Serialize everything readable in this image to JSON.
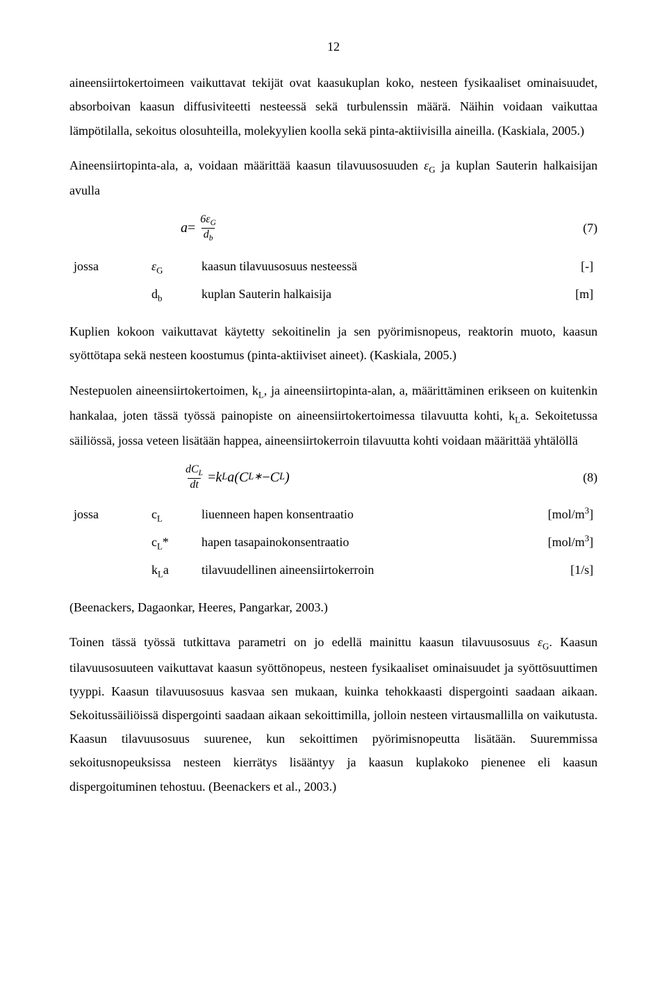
{
  "page_number": "12",
  "p1": "aineensiirtokertoimeen vaikuttavat tekijät ovat kaasukuplan koko, nesteen fysikaaliset ominaisuudet, absorboivan kaasun diffusiviteetti nesteessä sekä turbulenssin määrä. Näihin voidaan vaikuttaa lämpötilalla, sekoitus olosuhteilla, molekyylien koolla sekä pinta-aktiivisilla aineilla. (Kaskiala, 2005.)",
  "p2_pre": "Aineensiirtopinta-ala, a, voidaan määrittää kaasun tilavuusosuuden ",
  "p2_eps": "ε",
  "p2_epssub": "G",
  "p2_post": " ja kuplan Sauterin halkaisijan avulla",
  "eq7": {
    "lhs": "a",
    "eq": " = ",
    "num_a": "6ε",
    "num_sub": "G",
    "den_a": "d",
    "den_sub": "b",
    "number": "(7)"
  },
  "def7": {
    "jossa": "jossa",
    "r1_sym_a": "ε",
    "r1_sym_sub": "G",
    "r1_desc": "kaasun tilavuusosuus nesteessä",
    "r1_unit": "[-]",
    "r2_sym_a": "d",
    "r2_sym_sub": "b",
    "r2_desc": "kuplan Sauterin halkaisija",
    "r2_unit": "[m]"
  },
  "p3": "Kuplien kokoon vaikuttavat käytetty sekoitinelin ja sen pyörimisnopeus, reaktorin muoto, kaasun syöttötapa sekä nesteen koostumus (pinta-aktiiviset aineet). (Kaskiala, 2005.)",
  "p4_a": "Nestepuolen aineensiirtokertoimen, k",
  "p4_a_sub": "L",
  "p4_b": ", ja aineensiirtopinta-alan, a, määrittäminen erikseen on kuitenkin hankalaa, joten tässä työssä painopiste on aineensiirtokertoimessa tilavuutta kohti, k",
  "p4_b_sub": "L",
  "p4_c": "a. Sekoitetussa säiliössä, jossa veteen lisätään happea, aineensiirtokerroin tilavuutta kohti voidaan määrittää yhtälöllä",
  "eq8": {
    "num_a": "dC",
    "num_sub": "L",
    "den": "dt",
    "eq": " = ",
    "k": "k",
    "k_sub": "L",
    "a": "a(",
    "Cstar": "C",
    "Cstar_sub": "L",
    "Cstar_sup": "∗",
    "minus": " − ",
    "CL": "C",
    "CL_sub": "L",
    "close": ")",
    "number": "(8)"
  },
  "def8": {
    "jossa": "jossa",
    "r1_sym_a": "c",
    "r1_sym_sub": "L",
    "r1_desc": "liuenneen hapen konsentraatio",
    "r1_unit_a": "[mol/m",
    "r1_unit_sup": "3",
    "r1_unit_b": "]",
    "r2_sym_a": "c",
    "r2_sym_sub": "L",
    "r2_sym_post": "*",
    "r2_desc": "hapen tasapainokonsentraatio",
    "r2_unit_a": "[mol/m",
    "r2_unit_sup": "3",
    "r2_unit_b": "]",
    "r3_sym_a": "k",
    "r3_sym_sub": "L",
    "r3_sym_post": "a",
    "r3_desc": "tilavuudellinen aineensiirtokerroin",
    "r3_unit": "[1/s]"
  },
  "p5": "(Beenackers, Dagaonkar, Heeres, Pangarkar, 2003.)",
  "p6_a": "Toinen tässä työssä tutkittava parametri on jo edellä mainittu kaasun tilavuusosuus ",
  "p6_eps": "ε",
  "p6_eps_sub": "G",
  "p6_b": ". Kaasun tilavuusosuuteen vaikuttavat kaasun syöttönopeus, nesteen fysikaaliset ominaisuudet ja syöttösuuttimen tyyppi. Kaasun tilavuusosuus kasvaa sen mukaan, kuinka tehokkaasti dispergointi saadaan aikaan. Sekoitussäiliöissä dispergointi saadaan aikaan sekoittimilla, jolloin nesteen virtausmallilla on vaikutusta. Kaasun tilavuusosuus suurenee, kun sekoittimen pyörimisnopeutta lisätään. Suuremmissa sekoitusnopeuksissa nesteen kierrätys lisääntyy ja kaasun kuplakoko pienenee eli kaasun dispergoituminen tehostuu. (Beenackers et al., 2003.)"
}
